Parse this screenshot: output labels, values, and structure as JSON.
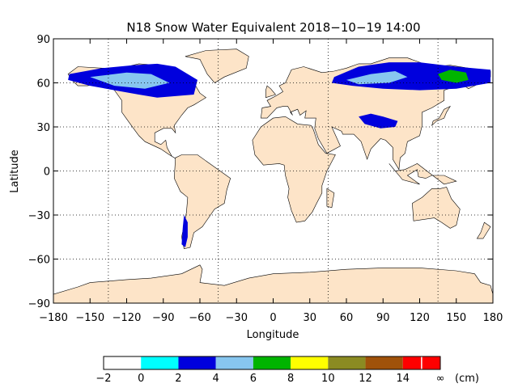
{
  "chart_data": {
    "type": "heatmap",
    "title": "N18 Snow Water Equivalent 2018−10−19 14:00",
    "xlabel": "Longitude",
    "ylabel": "Latitude",
    "xlim": [
      -180,
      180
    ],
    "ylim": [
      -90,
      90
    ],
    "x_ticks": [
      -180,
      -150,
      -120,
      -90,
      -60,
      -30,
      0,
      30,
      60,
      90,
      120,
      150,
      180
    ],
    "x_tick_labels": [
      "−180",
      "−150",
      "−120",
      "−90",
      "−60",
      "−30",
      "0",
      "30",
      "60",
      "90",
      "120",
      "150",
      "180"
    ],
    "y_ticks": [
      -90,
      -60,
      -30,
      0,
      30,
      60,
      90
    ],
    "y_tick_labels": [
      "−90",
      "−60",
      "−30",
      "0",
      "30",
      "60",
      "90"
    ],
    "grid": true,
    "grid_lines_lon": [
      -135,
      -45,
      45,
      135
    ],
    "grid_lines_lat": [
      -60,
      -30,
      0,
      30,
      60
    ],
    "colorbar": {
      "bins": [
        {
          "from": -2,
          "to": 0,
          "color": "#ffffff"
        },
        {
          "from": 0,
          "to": 2,
          "color": "#00ffff"
        },
        {
          "from": 2,
          "to": 4,
          "color": "#0000dd"
        },
        {
          "from": 4,
          "to": 6,
          "color": "#87c6ef"
        },
        {
          "from": 6,
          "to": 8,
          "color": "#00b400"
        },
        {
          "from": 8,
          "to": 10,
          "color": "#ffff00"
        },
        {
          "from": 10,
          "to": 12,
          "color": "#8b8b22"
        },
        {
          "from": 12,
          "to": 14,
          "color": "#a0520a"
        },
        {
          "from": 14,
          "to": 15,
          "color": "#ff0000"
        },
        {
          "from": 15,
          "to": 16,
          "color": "#ff0000"
        }
      ],
      "tick_labels": [
        "−2",
        "0",
        "2",
        "4",
        "6",
        "8",
        "10",
        "12",
        "14",
        "∞"
      ],
      "unit": "(cm)"
    },
    "snow_regions": [
      {
        "name": "north-america",
        "level_cm": 3,
        "color": "#0000dd",
        "lon": [
          -167,
          -140,
          -115,
          -95,
          -80,
          -62,
          -65,
          -95,
          -110,
          -130,
          -150,
          -168
        ],
        "lat": [
          66,
          70,
          72,
          73,
          71,
          62,
          52,
          50,
          52,
          55,
          58,
          62
        ]
      },
      {
        "name": "north-america-light",
        "level_cm": 5,
        "color": "#87c6ef",
        "lon": [
          -150,
          -120,
          -100,
          -85,
          -105,
          -130
        ],
        "lat": [
          64,
          67,
          66,
          60,
          56,
          58
        ]
      },
      {
        "name": "eurasia",
        "level_cm": 3,
        "color": "#0000dd",
        "lon": [
          50,
          70,
          95,
          120,
          150,
          178,
          178,
          150,
          120,
          90,
          65,
          48
        ],
        "lat": [
          64,
          71,
          74,
          74,
          71,
          69,
          60,
          56,
          55,
          56,
          58,
          60
        ]
      },
      {
        "name": "eurasia-deep",
        "level_cm": 7,
        "color": "#00b400",
        "lon": [
          135,
          145,
          158,
          160,
          150,
          138
        ],
        "lat": [
          66,
          69,
          67,
          62,
          60,
          62
        ]
      },
      {
        "name": "eurasia-light",
        "level_cm": 5,
        "color": "#87c6ef",
        "lon": [
          60,
          80,
          100,
          110,
          95,
          70
        ],
        "lat": [
          62,
          66,
          68,
          64,
          60,
          59
        ]
      },
      {
        "name": "tibet",
        "level_cm": 3,
        "color": "#0000dd",
        "lon": [
          70,
          80,
          90,
          102,
          100,
          88,
          75
        ],
        "lat": [
          37,
          39,
          37,
          34,
          30,
          29,
          32
        ]
      },
      {
        "name": "andes",
        "level_cm": 3,
        "color": "#0000dd",
        "lon": [
          -73,
          -70,
          -70,
          -72,
          -75,
          -74
        ],
        "lat": [
          -30,
          -35,
          -45,
          -52,
          -50,
          -38
        ]
      }
    ]
  }
}
